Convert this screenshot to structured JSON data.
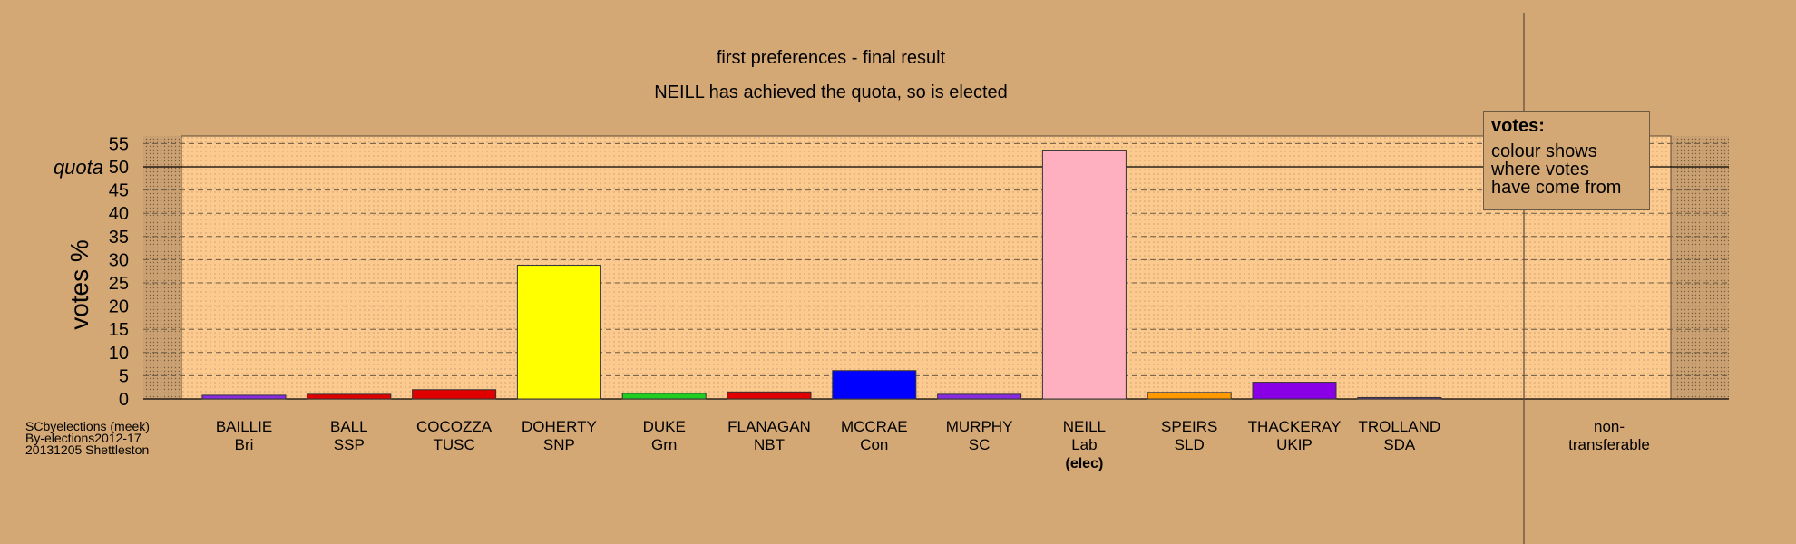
{
  "chart_data": {
    "type": "bar",
    "title": "first preferences - final result",
    "subtitle": "NEILL has achieved the quota, so is elected",
    "ylabel": "votes %",
    "ylim": [
      0,
      56
    ],
    "yticks": [
      0,
      5,
      10,
      15,
      20,
      25,
      30,
      35,
      40,
      45,
      50,
      55
    ],
    "quota": 50,
    "quota_label": "quota",
    "grid": true,
    "categories": [
      {
        "name": "BAILLIE",
        "party": "Bri",
        "value": 0.8,
        "color": "#8a2be2"
      },
      {
        "name": "BALL",
        "party": "SSP",
        "value": 1.0,
        "color": "#e00000"
      },
      {
        "name": "COCOZZA",
        "party": "TUSC",
        "value": 2.0,
        "color": "#e00000"
      },
      {
        "name": "DOHERTY",
        "party": "SNP",
        "value": 28.8,
        "color": "#ffff00"
      },
      {
        "name": "DUKE",
        "party": "Grn",
        "value": 1.2,
        "color": "#22cc22"
      },
      {
        "name": "FLANAGAN",
        "party": "NBT",
        "value": 1.5,
        "color": "#e00000"
      },
      {
        "name": "MCCRAE",
        "party": "Con",
        "value": 6.1,
        "color": "#0000ff"
      },
      {
        "name": "MURPHY",
        "party": "SC",
        "value": 1.0,
        "color": "#8a2be2"
      },
      {
        "name": "NEILL",
        "party": "Lab",
        "value": 53.6,
        "color": "#ffb0c0",
        "note": "(elec)"
      },
      {
        "name": "SPEIRS",
        "party": "SLD",
        "value": 1.4,
        "color": "#ff9900"
      },
      {
        "name": "THACKERAY",
        "party": "UKIP",
        "value": 3.6,
        "color": "#8a00e6"
      },
      {
        "name": "TROLLAND",
        "party": "SDA",
        "value": 0.3,
        "color": "#6a3d9a"
      }
    ],
    "non_transferable": {
      "label_line1": "non-",
      "label_line2": "transferable",
      "value": 0
    },
    "legend": {
      "placement": "top-right",
      "heading": "votes:",
      "lines": [
        "colour shows",
        "where votes",
        "have come from"
      ]
    }
  },
  "source": {
    "line1": "SCbyelections (meek)",
    "line2": "By-elections2012-17",
    "line3": "20131205 Shettleston"
  }
}
